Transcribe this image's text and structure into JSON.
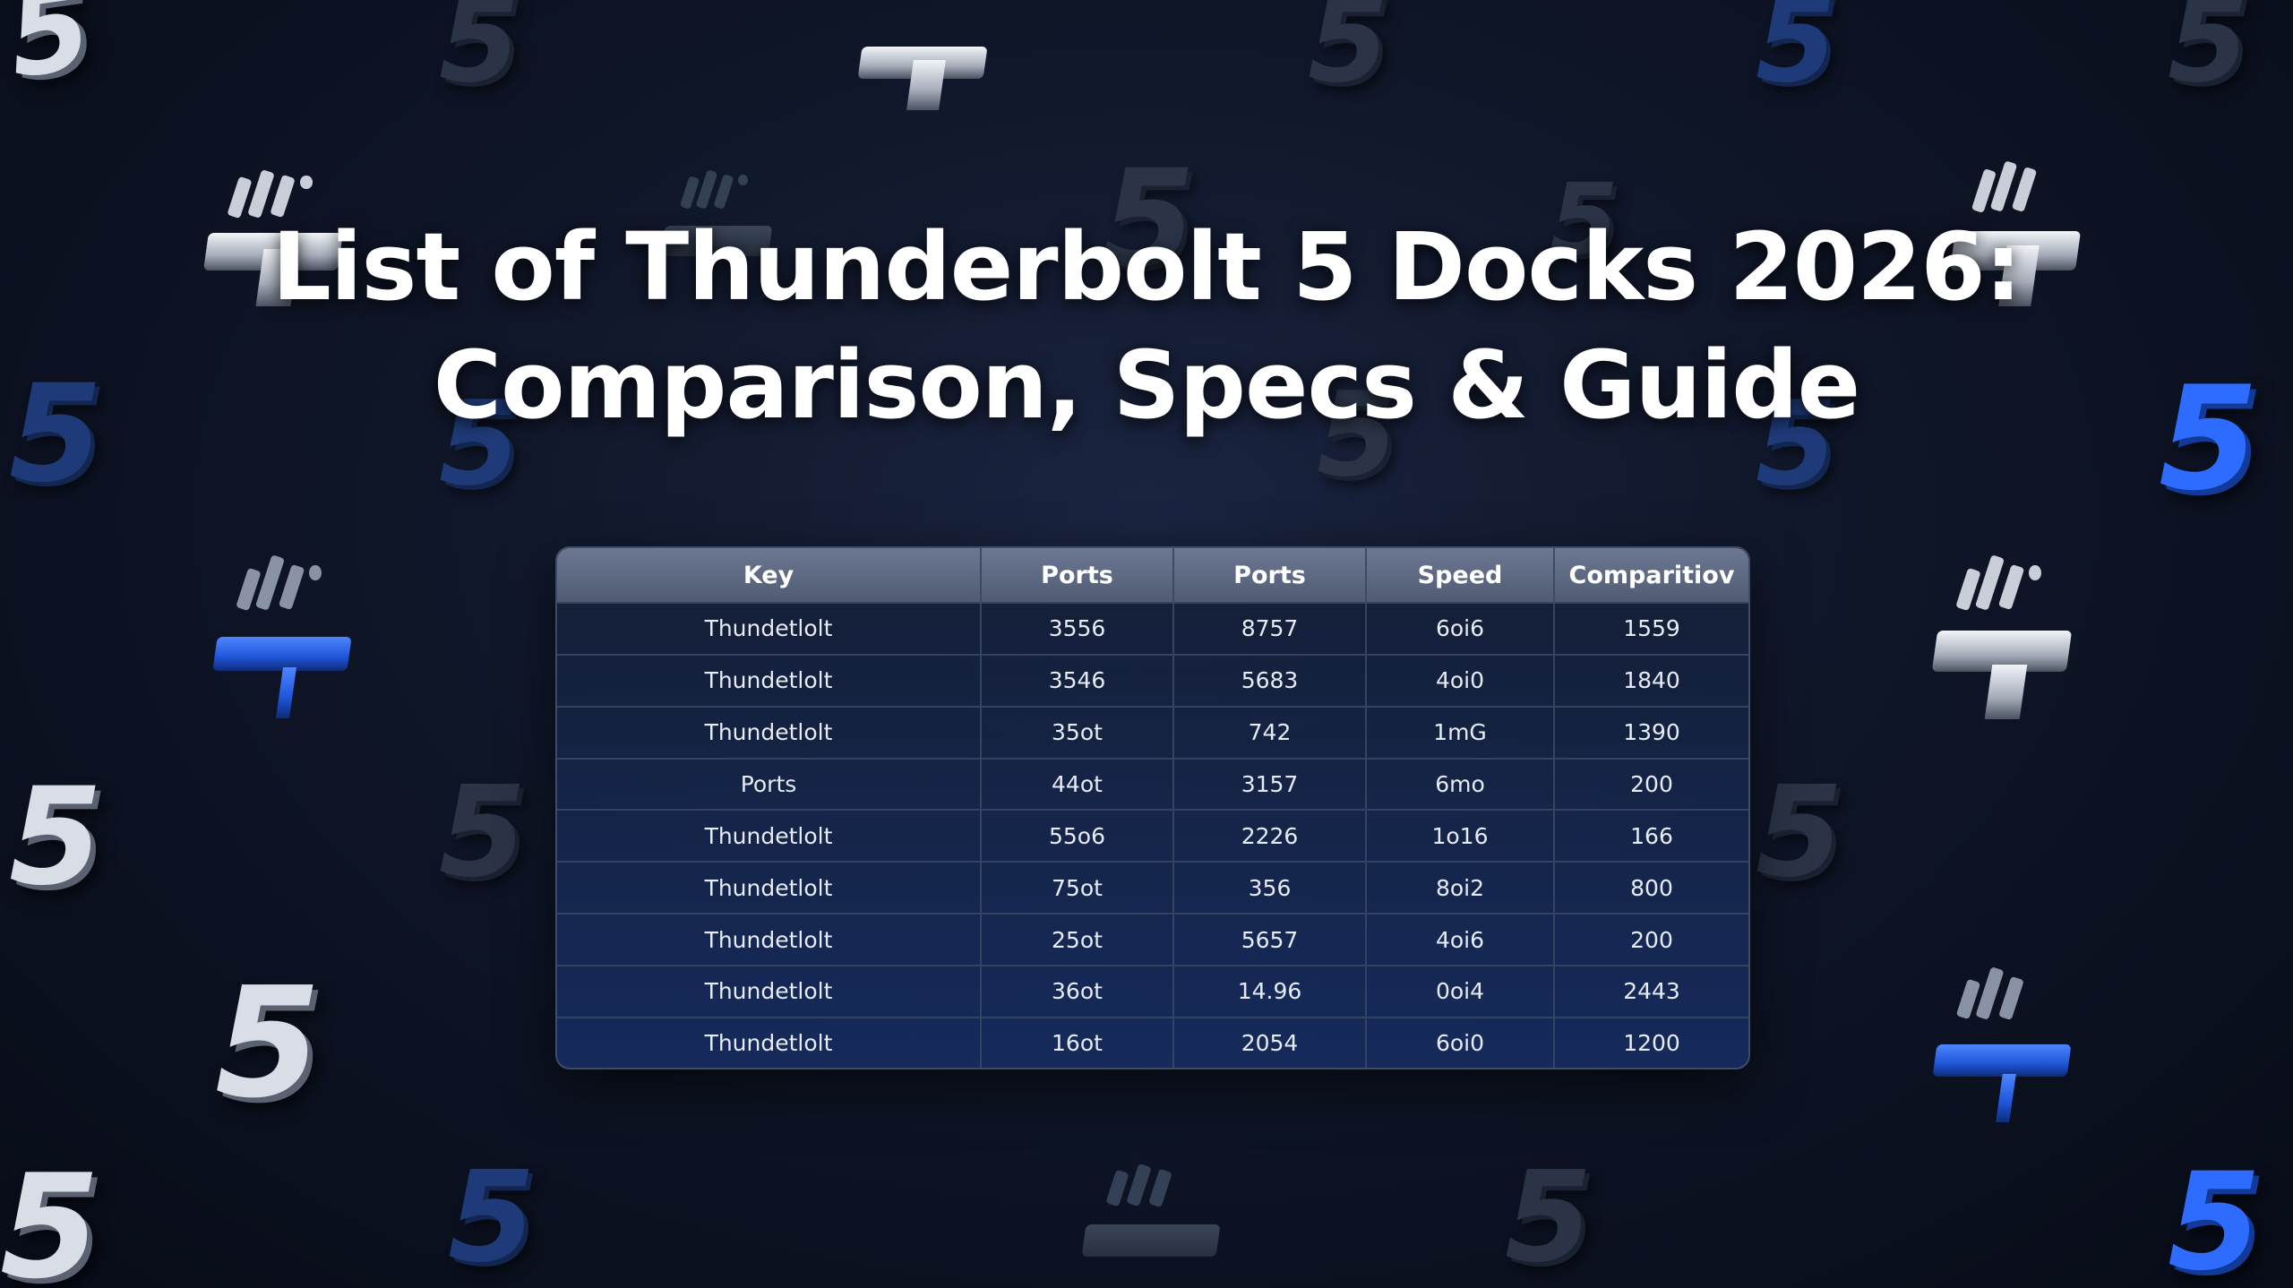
{
  "title": {
    "line1": "List of Thunderbolt 5 Docks 2026:",
    "line2": "Comparison, Specs & Guide"
  },
  "table": {
    "headers": [
      "Key",
      "Ports",
      "Ports",
      "Speed",
      "Comparitiov"
    ],
    "rows": [
      [
        "Thundetlolt",
        "3556",
        "8757",
        "6oi6",
        "1559"
      ],
      [
        "Thundetlolt",
        "3546",
        "5683",
        "4oi0",
        "1840"
      ],
      [
        "Thundetlolt",
        "35ot",
        "742",
        "1mG",
        "1390"
      ],
      [
        "Ports",
        "44ot",
        "3157",
        "6mo",
        "200"
      ],
      [
        "Thundetlolt",
        "55o6",
        "2226",
        "1o16",
        "166"
      ],
      [
        "Thundetlolt",
        "75ot",
        "356",
        "8oi2",
        "800"
      ],
      [
        "Thundetlolt",
        "25ot",
        "5657",
        "4oi6",
        "200"
      ],
      [
        "Thundetlolt",
        "36ot",
        "14.96",
        "0oi4",
        "2443"
      ],
      [
        "Thundetlolt",
        "16ot",
        "2054",
        "6oi0",
        "1200"
      ]
    ]
  },
  "background": {
    "glyph": "5",
    "icons": [
      "thunderbolt-5-logo-icon",
      "dock-icon"
    ],
    "colors": {
      "silver": "#d8dde6",
      "blue": "#2d6cff",
      "background": "#0f1628"
    }
  }
}
